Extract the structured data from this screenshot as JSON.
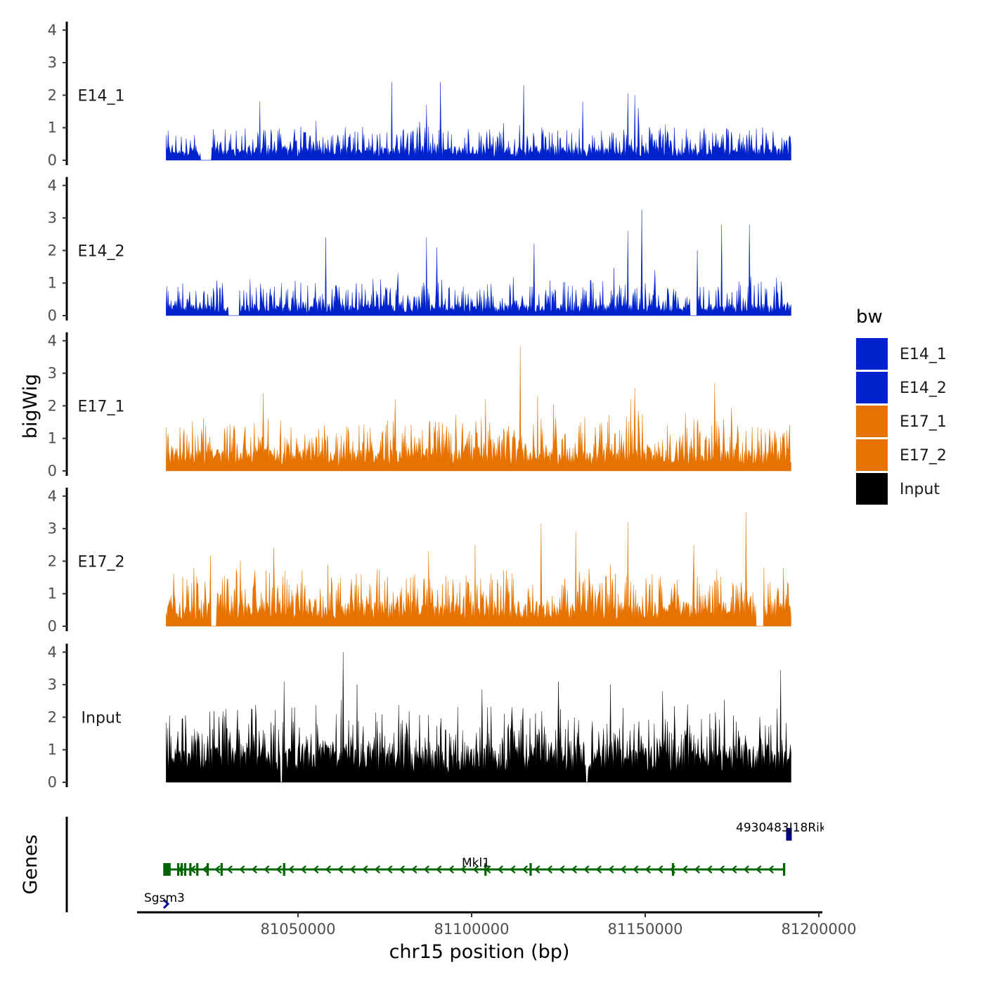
{
  "chart_data": {
    "type": "area",
    "title": "",
    "ylabel": "bigWig",
    "xlabel": "chr15 position (bp)",
    "ylim": [
      0,
      4
    ],
    "yticks": [
      0,
      1,
      2,
      3,
      4
    ],
    "xlim": [
      81005000,
      81200000
    ],
    "xticks": [
      81050000,
      81100000,
      81150000,
      81200000
    ],
    "xtick_labels": [
      "81050000",
      "81100000",
      "81150000",
      "81200000"
    ],
    "signal_range": [
      81012000,
      81192000
    ],
    "legend": {
      "title": "bw",
      "position": "right",
      "entries": [
        {
          "label": "E14_1",
          "color": "#0022CC"
        },
        {
          "label": "E14_2",
          "color": "#0022CC"
        },
        {
          "label": "E17_1",
          "color": "#E67300"
        },
        {
          "label": "E17_2",
          "color": "#E67300"
        },
        {
          "label": "Input",
          "color": "#000000"
        }
      ]
    },
    "tracks": [
      {
        "name": "E14_1",
        "color": "#0022CC",
        "baseline": 0.35,
        "noise": 0.55,
        "peaks": [
          [
            81077000,
            2.4
          ],
          [
            81091000,
            2.4
          ],
          [
            81115000,
            2.3
          ],
          [
            81145000,
            2.05
          ],
          [
            81147000,
            2.0
          ],
          [
            81132000,
            1.8
          ],
          [
            81039000,
            1.8
          ],
          [
            81087000,
            1.7
          ],
          [
            81148000,
            1.6
          ]
        ],
        "gaps": [
          [
            81022000,
            81025000
          ]
        ]
      },
      {
        "name": "E14_2",
        "color": "#0022CC",
        "baseline": 0.3,
        "noise": 0.6,
        "peaks": [
          [
            81149000,
            3.25
          ],
          [
            81145000,
            2.6
          ],
          [
            81172000,
            2.8
          ],
          [
            81180000,
            2.8
          ],
          [
            81087000,
            2.4
          ],
          [
            81058000,
            2.4
          ],
          [
            81118000,
            2.2
          ],
          [
            81165000,
            2.0
          ],
          [
            81090000,
            2.1
          ]
        ],
        "gaps": [
          [
            81030000,
            81033000
          ],
          [
            81163000,
            81165000
          ]
        ]
      },
      {
        "name": "E17_1",
        "color": "#E67300",
        "baseline": 0.6,
        "noise": 0.8,
        "peaks": [
          [
            81114000,
            3.85
          ],
          [
            81170000,
            2.7
          ],
          [
            81147000,
            2.55
          ],
          [
            81040000,
            2.4
          ],
          [
            81119000,
            2.3
          ],
          [
            81078000,
            2.2
          ],
          [
            81104000,
            2.2
          ]
        ],
        "gaps": []
      },
      {
        "name": "E17_2",
        "color": "#E67300",
        "baseline": 0.65,
        "noise": 0.85,
        "peaks": [
          [
            81179000,
            3.5
          ],
          [
            81120000,
            3.15
          ],
          [
            81145000,
            3.2
          ],
          [
            81130000,
            2.9
          ],
          [
            81164000,
            2.5
          ],
          [
            81043000,
            2.4
          ],
          [
            81101000,
            2.5
          ],
          [
            81020000,
            1.8
          ]
        ],
        "gaps": [
          [
            81025000,
            81026500
          ],
          [
            81182000,
            81184000
          ]
        ]
      },
      {
        "name": "Input",
        "color": "#000000",
        "baseline": 1.0,
        "noise": 1.0,
        "peaks": [
          [
            81063000,
            4.0
          ],
          [
            81189000,
            3.45
          ],
          [
            81046000,
            3.1
          ],
          [
            81125000,
            3.1
          ],
          [
            81067000,
            3.0
          ],
          [
            81140000,
            3.0
          ],
          [
            81103000,
            2.85
          ],
          [
            81155000,
            2.8
          ]
        ],
        "gaps": [
          [
            81045000,
            81045400
          ],
          [
            81133000,
            81133400
          ]
        ]
      }
    ],
    "genes": {
      "label": "Genes",
      "items": [
        {
          "name": "Mkl1",
          "start": 81012000,
          "end": 81190000,
          "strand": "-",
          "color": "#006400",
          "lane": 1,
          "exons": [
            81012000,
            81013000,
            81015500,
            81016500,
            81017500,
            81019000,
            81021000,
            81024000,
            81028000,
            81046000,
            81104000,
            81117000,
            81158000,
            81190000
          ]
        },
        {
          "name": "4930483J18Rik",
          "start": 81190500,
          "end": 81192000,
          "strand": "+",
          "color": "#00008B",
          "lane": 0,
          "exons": [
            81190500,
            81192000
          ]
        },
        {
          "name": "Sgsm3",
          "start": 81006000,
          "end": 81008500,
          "strand": "+",
          "color": "#00008B",
          "lane": 2,
          "exons": []
        }
      ]
    }
  }
}
